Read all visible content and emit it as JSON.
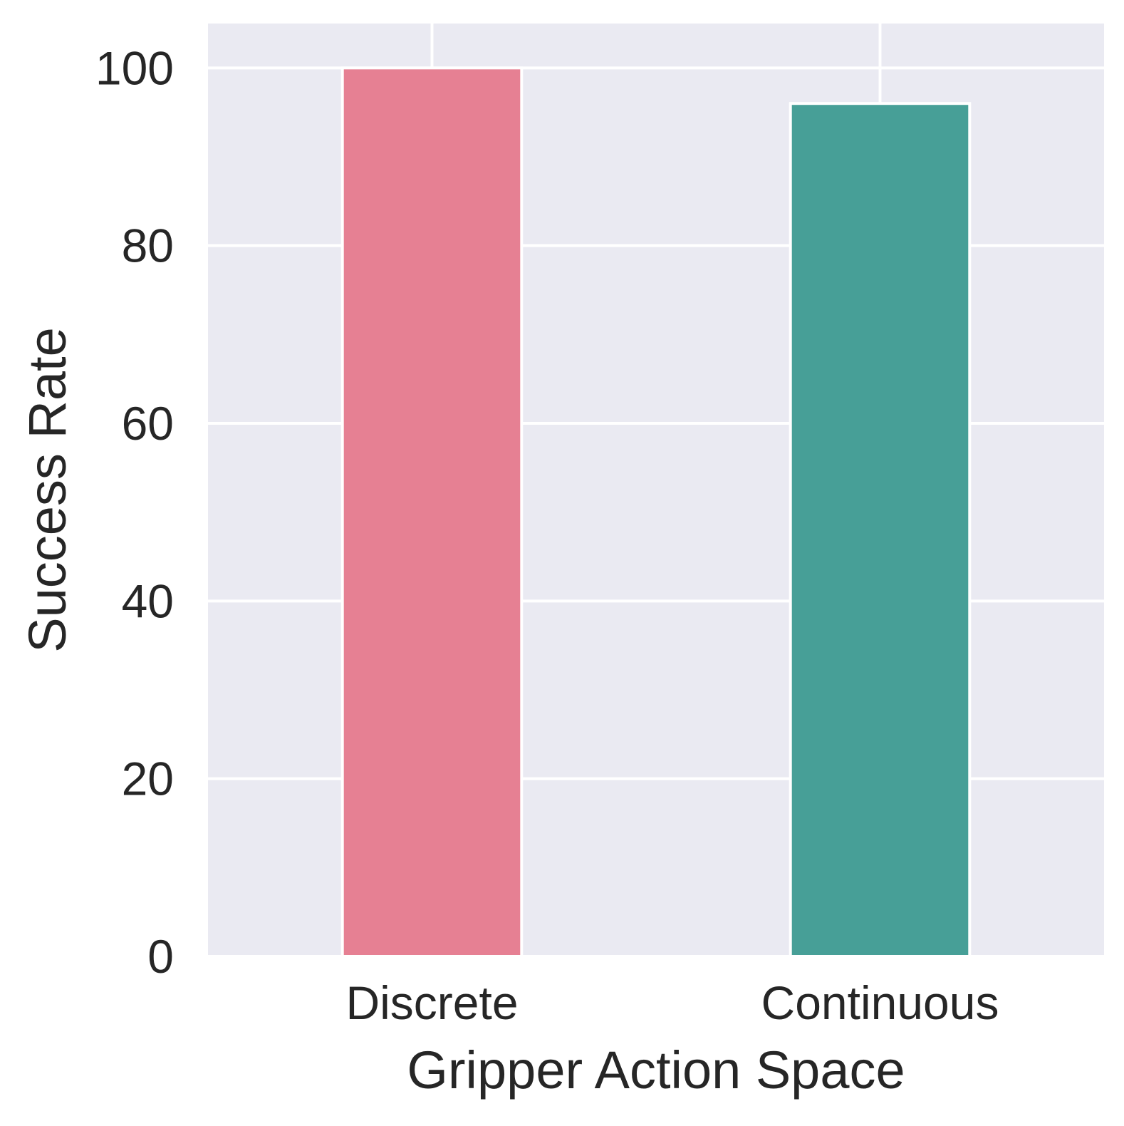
{
  "chart_data": {
    "type": "bar",
    "title": "",
    "xlabel": "Gripper Action Space",
    "ylabel": "Success Rate",
    "categories": [
      "Discrete",
      "Continuous"
    ],
    "values": [
      100,
      96
    ],
    "ylim": [
      0,
      105
    ],
    "yticks": [
      "0",
      "20",
      "40",
      "60",
      "80",
      "100"
    ],
    "grid": true,
    "legend": "none",
    "colors": {
      "background": "#eaeaf2",
      "grid": "#ffffff",
      "bars": [
        "#e68093",
        "#479f97"
      ],
      "text": "#262626"
    }
  }
}
